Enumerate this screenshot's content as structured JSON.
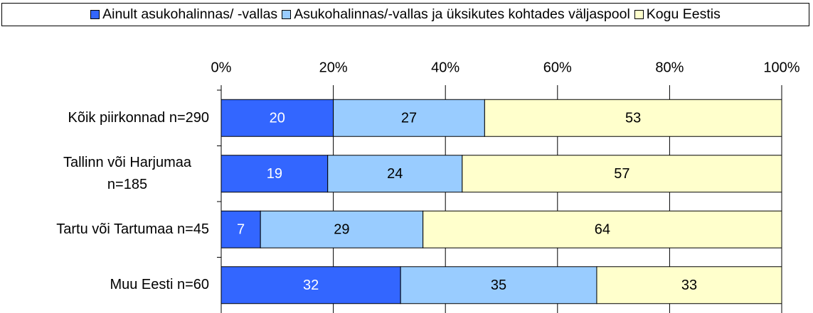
{
  "chart_data": {
    "type": "stacked-bar-horizontal",
    "categories": [
      "Kõik piirkonnad n=290",
      "Tallinn või Harjumaa n=185",
      "Tartu või Tartumaa n=45",
      "Muu Eesti n=60"
    ],
    "series": [
      {
        "name": "Ainult asukohalinnas/ -vallas",
        "color": "#3366ff",
        "values": [
          20,
          19,
          7,
          32
        ]
      },
      {
        "name": "Asukohalinnas/-vallas ja üksikutes kohtades väljaspool",
        "color": "#99ccff",
        "values": [
          27,
          24,
          29,
          35
        ]
      },
      {
        "name": "Kogu Eestis",
        "color": "#ffffcc",
        "values": [
          53,
          57,
          64,
          33
        ]
      }
    ],
    "xlim": [
      0,
      100
    ],
    "xticks": [
      {
        "value": 0,
        "label": "0%"
      },
      {
        "value": 20,
        "label": "20%"
      },
      {
        "value": 40,
        "label": "40%"
      },
      {
        "value": 60,
        "label": "60%"
      },
      {
        "value": 80,
        "label": "80%"
      },
      {
        "value": 100,
        "label": "100%"
      }
    ],
    "grid": true,
    "legend": "top"
  }
}
